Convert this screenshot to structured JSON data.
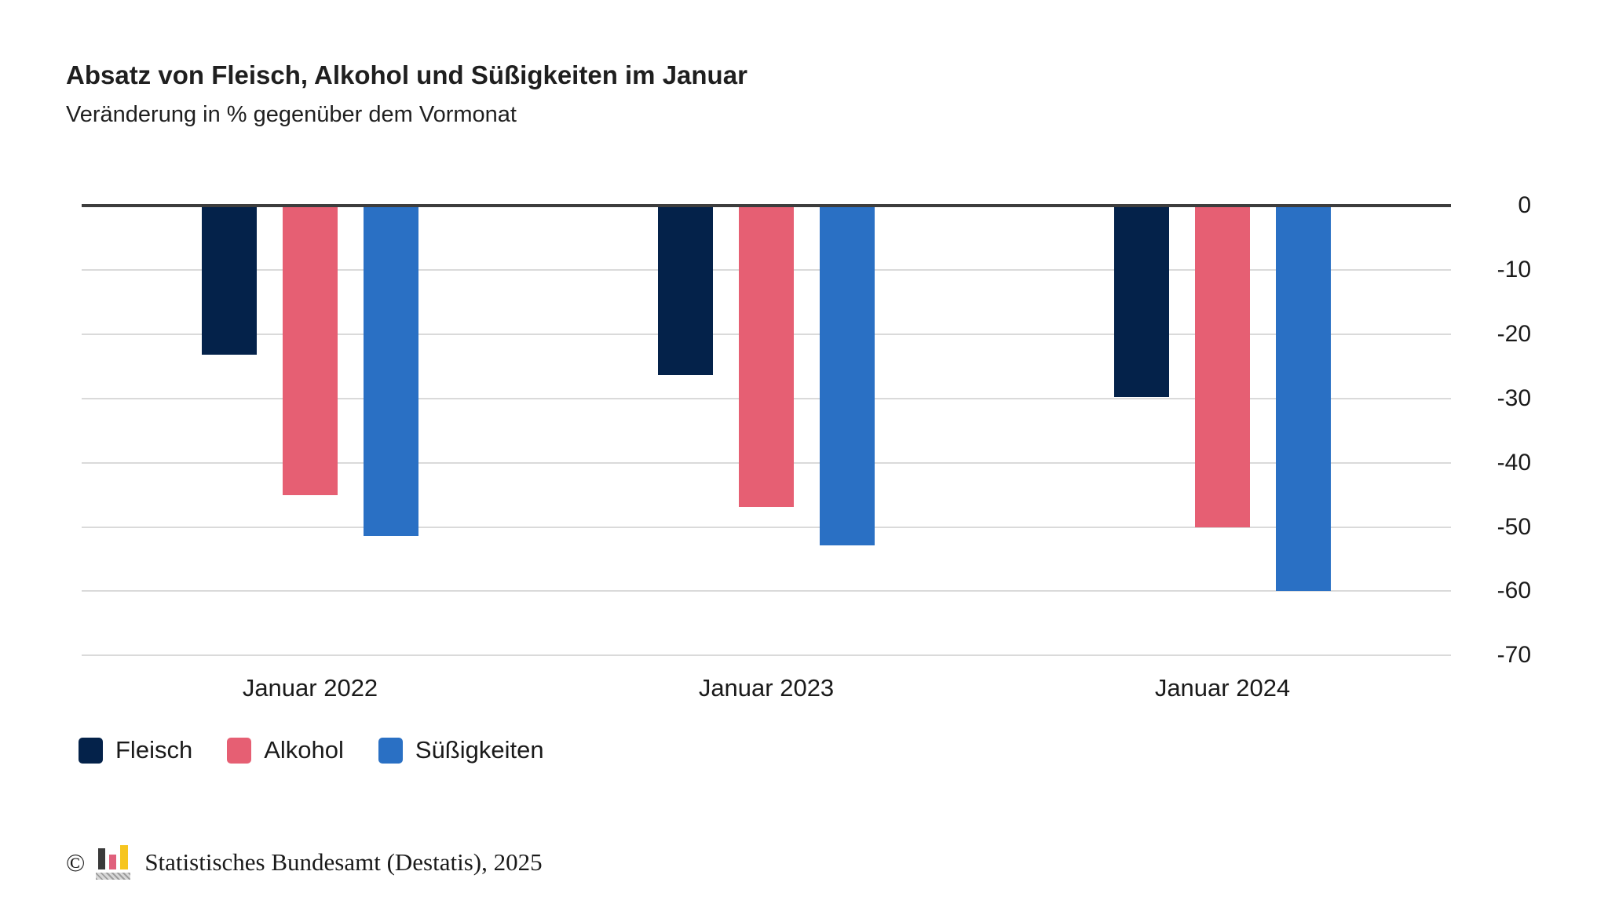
{
  "chart_data": {
    "type": "bar",
    "title": "Absatz von Fleisch, Alkohol und Süßigkeiten im Januar",
    "subtitle": "Veränderung in % gegenüber dem Vormonat",
    "categories": [
      "Januar 2022",
      "Januar 2023",
      "Januar 2024"
    ],
    "series": [
      {
        "name": "Fleisch",
        "color": "#04224a",
        "values": [
          -23.2,
          -26.4,
          -29.8
        ]
      },
      {
        "name": "Alkohol",
        "color": "#e65f73",
        "values": [
          -45.1,
          -46.9,
          -50.1
        ]
      },
      {
        "name": "Süßigkeiten",
        "color": "#2a70c4",
        "values": [
          -51.4,
          -52.9,
          -59.9
        ]
      }
    ],
    "ylim": [
      -70,
      0
    ],
    "yticks": [
      0,
      -10,
      -20,
      -30,
      -40,
      -50,
      -60,
      -70
    ],
    "unit": "%",
    "grid": true,
    "y_axis_side": "right",
    "legend_position": "bottom-left"
  },
  "footer": {
    "copyright_symbol": "©",
    "logo_icon": "destatis-bar-chart-logo",
    "source_text": "Statistisches Bundesamt (Destatis), 2025"
  }
}
